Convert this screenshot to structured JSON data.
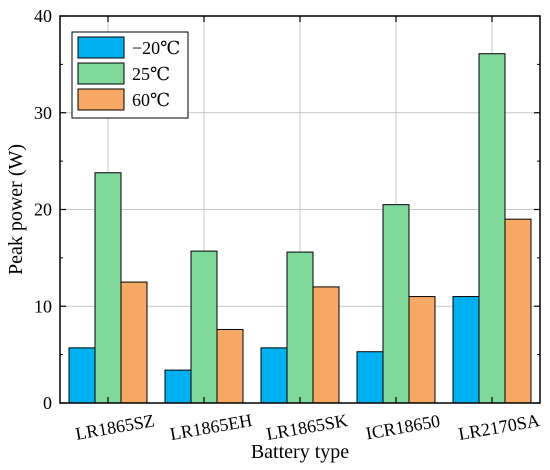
{
  "chart_data": {
    "type": "bar",
    "title": "",
    "xlabel": "Battery type",
    "ylabel": "Peak power (W)",
    "categories": [
      "LR1865SZ",
      "LR1865EH",
      "LR1865SK",
      "ICR18650",
      "LR2170SA"
    ],
    "series": [
      {
        "name": "−20℃",
        "color": "#00b0f0",
        "values": [
          5.7,
          3.4,
          5.7,
          5.3,
          11.0
        ]
      },
      {
        "name": "25℃",
        "color": "#7fd99a",
        "values": [
          23.8,
          15.7,
          15.6,
          20.5,
          36.1
        ]
      },
      {
        "name": "60℃",
        "color": "#f7a865",
        "values": [
          12.5,
          7.6,
          12.0,
          11.0,
          19.0
        ]
      }
    ],
    "ylim": [
      0,
      40
    ],
    "yticks": [
      0,
      10,
      20,
      30,
      40
    ],
    "grid": true,
    "legend_position": "top-left"
  }
}
